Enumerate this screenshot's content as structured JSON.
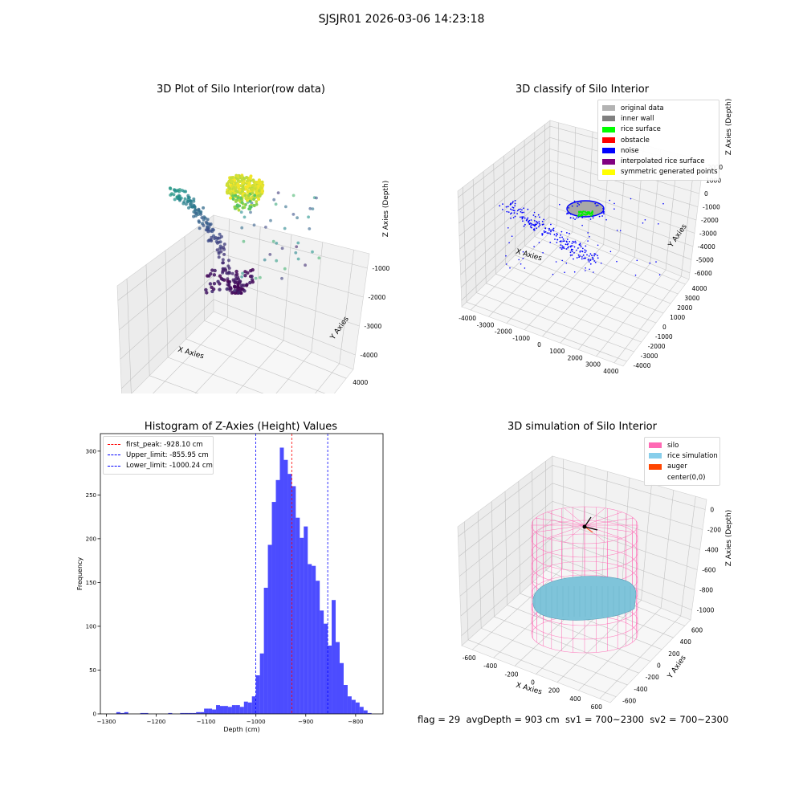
{
  "figure_title": "SJSJR01 2026-03-06 14:23:18",
  "footer_text": "flag = 29  avgDepth = 903 cm  sv1 = 700~2300  sv2 = 700~2300",
  "chart_data": [
    {
      "type": "scatter",
      "title": "3D Plot of Silo Interior(row data)",
      "xlabel": "X Axies",
      "ylabel": "Y Axies",
      "zlabel": "Z Axies (Depth)",
      "x_ticks": [
        "-4000",
        "-2000",
        "0",
        "2000",
        "4000"
      ],
      "y_ticks": [
        "-4000",
        "-2000",
        "0",
        "2000",
        "4000"
      ],
      "z_ticks": [
        "-1000",
        "-2000",
        "-3000",
        "-4000"
      ],
      "colormap": "viridis",
      "legend": null
    },
    {
      "type": "scatter",
      "title": "3D classify of Silo Interior",
      "xlabel": "X Axies",
      "ylabel": "Y Axies",
      "zlabel": "Z Axies (Depth)",
      "x_ticks": [
        "-4000",
        "-3000",
        "-2000",
        "-1000",
        "0",
        "1000",
        "2000",
        "3000",
        "4000"
      ],
      "y_ticks": [
        "-4000",
        "-3000",
        "-2000",
        "-1000",
        "0",
        "1000",
        "2000",
        "3000",
        "4000"
      ],
      "z_ticks": [
        "2000",
        "1000",
        "0",
        "-1000",
        "-2000",
        "-3000",
        "-4000",
        "-5000",
        "-6000"
      ],
      "legend": {
        "placement": "top-right",
        "entries": [
          {
            "label": "original data",
            "color": "#b3b3b3"
          },
          {
            "label": "inner wall",
            "color": "#808080"
          },
          {
            "label": "rice surface",
            "color": "#00ff00"
          },
          {
            "label": "obstacle",
            "color": "#ff0000"
          },
          {
            "label": "noise",
            "color": "#0000ff"
          },
          {
            "label": "interpolated rice surface",
            "color": "#800080"
          },
          {
            "label": "symmetric generated points",
            "color": "#ffff00"
          }
        ]
      }
    },
    {
      "type": "bar",
      "title": "Histogram of Z-Axies (Height) Values",
      "xlabel": "Depth (cm)",
      "ylabel": "Frequency",
      "xlim": [
        -1312,
        -745
      ],
      "ylim": [
        0,
        320
      ],
      "x_ticks": [
        -1300,
        -1200,
        -1100,
        -1000,
        -900,
        -800
      ],
      "y_ticks": [
        0,
        50,
        100,
        150,
        200,
        250,
        300
      ],
      "bar_color": "#0000ff",
      "bins": [
        {
          "x0": -1280,
          "x1": -1272,
          "count": 2
        },
        {
          "x0": -1272,
          "x1": -1264,
          "count": 1
        },
        {
          "x0": -1264,
          "x1": -1256,
          "count": 2
        },
        {
          "x0": -1232,
          "x1": -1224,
          "count": 1
        },
        {
          "x0": -1224,
          "x1": -1216,
          "count": 1
        },
        {
          "x0": -1176,
          "x1": -1168,
          "count": 1
        },
        {
          "x0": -1152,
          "x1": -1144,
          "count": 1
        },
        {
          "x0": -1144,
          "x1": -1136,
          "count": 1
        },
        {
          "x0": -1136,
          "x1": -1128,
          "count": 1
        },
        {
          "x0": -1128,
          "x1": -1120,
          "count": 1
        },
        {
          "x0": -1120,
          "x1": -1112,
          "count": 2
        },
        {
          "x0": -1112,
          "x1": -1104,
          "count": 2
        },
        {
          "x0": -1104,
          "x1": -1096,
          "count": 6
        },
        {
          "x0": -1096,
          "x1": -1088,
          "count": 6
        },
        {
          "x0": -1088,
          "x1": -1080,
          "count": 5
        },
        {
          "x0": -1080,
          "x1": -1072,
          "count": 10
        },
        {
          "x0": -1072,
          "x1": -1064,
          "count": 9
        },
        {
          "x0": -1064,
          "x1": -1056,
          "count": 9
        },
        {
          "x0": -1056,
          "x1": -1048,
          "count": 8
        },
        {
          "x0": -1048,
          "x1": -1040,
          "count": 10
        },
        {
          "x0": -1040,
          "x1": -1032,
          "count": 10
        },
        {
          "x0": -1032,
          "x1": -1024,
          "count": 8
        },
        {
          "x0": -1024,
          "x1": -1016,
          "count": 14
        },
        {
          "x0": -1016,
          "x1": -1008,
          "count": 13
        },
        {
          "x0": -1008,
          "x1": -1000,
          "count": 20
        },
        {
          "x0": -1000,
          "x1": -992,
          "count": 44
        },
        {
          "x0": -992,
          "x1": -984,
          "count": 69
        },
        {
          "x0": -984,
          "x1": -976,
          "count": 144
        },
        {
          "x0": -976,
          "x1": -968,
          "count": 193
        },
        {
          "x0": -968,
          "x1": -960,
          "count": 242
        },
        {
          "x0": -960,
          "x1": -952,
          "count": 267
        },
        {
          "x0": -952,
          "x1": -944,
          "count": 304
        },
        {
          "x0": -944,
          "x1": -936,
          "count": 290
        },
        {
          "x0": -936,
          "x1": -928,
          "count": 274
        },
        {
          "x0": -928,
          "x1": -920,
          "count": 260
        },
        {
          "x0": -920,
          "x1": -912,
          "count": 224
        },
        {
          "x0": -912,
          "x1": -904,
          "count": 201
        },
        {
          "x0": -904,
          "x1": -896,
          "count": 214
        },
        {
          "x0": -896,
          "x1": -888,
          "count": 171
        },
        {
          "x0": -888,
          "x1": -880,
          "count": 169
        },
        {
          "x0": -880,
          "x1": -872,
          "count": 152
        },
        {
          "x0": -872,
          "x1": -864,
          "count": 118
        },
        {
          "x0": -864,
          "x1": -856,
          "count": 103
        },
        {
          "x0": -856,
          "x1": -848,
          "count": 78
        },
        {
          "x0": -848,
          "x1": -840,
          "count": 130
        },
        {
          "x0": -840,
          "x1": -832,
          "count": 82
        },
        {
          "x0": -832,
          "x1": -824,
          "count": 58
        },
        {
          "x0": -824,
          "x1": -816,
          "count": 33
        },
        {
          "x0": -816,
          "x1": -808,
          "count": 20
        },
        {
          "x0": -808,
          "x1": -800,
          "count": 16
        },
        {
          "x0": -800,
          "x1": -792,
          "count": 13
        },
        {
          "x0": -792,
          "x1": -784,
          "count": 8
        },
        {
          "x0": -784,
          "x1": -776,
          "count": 4
        },
        {
          "x0": -776,
          "x1": -768,
          "count": 1
        }
      ],
      "vlines": [
        {
          "label": "first_peak: -928.10 cm",
          "x": -928.1,
          "color": "#ff0000"
        },
        {
          "label": "Upper_limit: -855.95 cm",
          "x": -855.95,
          "color": "#0000ff"
        },
        {
          "label": "Lower_limit: -1000.24 cm",
          "x": -1000.24,
          "color": "#0000ff"
        }
      ],
      "legend_placement": "top-left"
    },
    {
      "type": "surface",
      "title": "3D simulation of Silo Interior",
      "xlabel": "X Axies",
      "ylabel": "Y Axies",
      "zlabel": "Z Axies (Depth)",
      "x_ticks": [
        "-600",
        "-400",
        "-200",
        "0",
        "200",
        "400",
        "600"
      ],
      "y_ticks": [
        "-600",
        "-400",
        "-200",
        "0",
        "200",
        "400",
        "600"
      ],
      "z_ticks": [
        "0",
        "-200",
        "-400",
        "-600",
        "-800",
        "-1000"
      ],
      "legend": {
        "placement": "top-right",
        "entries": [
          {
            "label": "silo",
            "color": "#ff69b4"
          },
          {
            "label": "rice simulation",
            "color": "#87ceeb"
          },
          {
            "label": "auger",
            "color": "#ff4500"
          },
          {
            "label": "center(0,0)",
            "color": ""
          }
        ]
      }
    }
  ]
}
